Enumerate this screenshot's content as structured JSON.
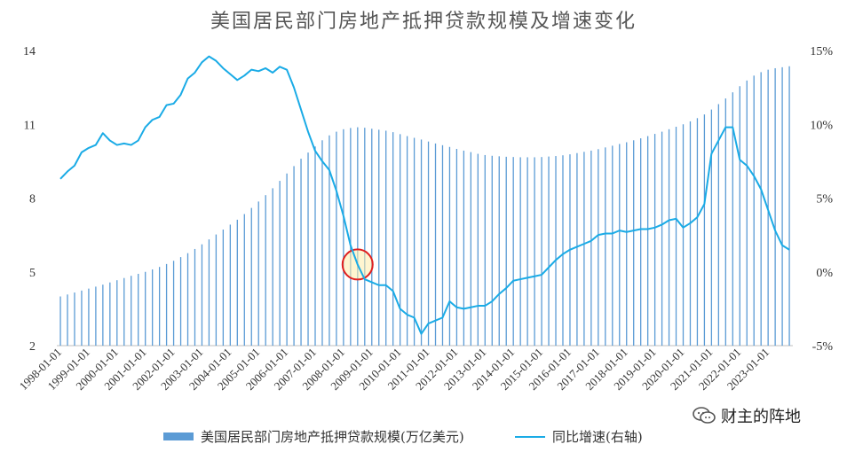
{
  "chart_data": {
    "type": "bar",
    "title": "美国居民部门房地产抵押贷款规模及增速变化",
    "x_tick_labels": [
      "1998-01-01",
      "1999-01-01",
      "2000-01-01",
      "2001-01-01",
      "2002-01-01",
      "2003-01-01",
      "2004-01-01",
      "2005-01-01",
      "2006-01-01",
      "2007-01-01",
      "2008-01-01",
      "2009-01-01",
      "2010-01-01",
      "2011-01-01",
      "2012-01-01",
      "2013-01-01",
      "2014-01-01",
      "2015-01-01",
      "2016-01-01",
      "2017-01-01",
      "2018-01-01",
      "2019-01-01",
      "2020-01-01",
      "2021-01-01",
      "2022-01-01",
      "2023-01-01"
    ],
    "y_left": {
      "ticks": [
        2,
        5,
        8,
        11,
        14
      ],
      "range": [
        2,
        14
      ]
    },
    "y_right": {
      "ticks": [
        "-5%",
        "0%",
        "5%",
        "10%",
        "15%"
      ],
      "range": [
        -5,
        15
      ]
    },
    "series": [
      {
        "name": "美国居民部门房地产抵押贷款规模(万亿美元)",
        "kind": "bar",
        "axis": "left",
        "color": "#5b9bd5",
        "start": "1998Q1",
        "frequency": "quarterly",
        "values": [
          4.0,
          4.08,
          4.16,
          4.24,
          4.32,
          4.4,
          4.48,
          4.57,
          4.66,
          4.75,
          4.84,
          4.92,
          5.0,
          5.1,
          5.2,
          5.32,
          5.45,
          5.6,
          5.76,
          5.93,
          6.12,
          6.32,
          6.52,
          6.72,
          6.92,
          7.12,
          7.35,
          7.6,
          7.86,
          8.12,
          8.4,
          8.7,
          9.0,
          9.3,
          9.6,
          9.85,
          10.1,
          10.35,
          10.55,
          10.7,
          10.8,
          10.85,
          10.88,
          10.86,
          10.82,
          10.78,
          10.74,
          10.68,
          10.6,
          10.52,
          10.45,
          10.38,
          10.3,
          10.22,
          10.15,
          10.08,
          10.0,
          9.93,
          9.87,
          9.8,
          9.75,
          9.72,
          9.7,
          9.68,
          9.67,
          9.66,
          9.66,
          9.66,
          9.67,
          9.69,
          9.71,
          9.74,
          9.78,
          9.83,
          9.88,
          9.93,
          9.99,
          10.06,
          10.13,
          10.2,
          10.27,
          10.35,
          10.43,
          10.52,
          10.61,
          10.7,
          10.8,
          10.9,
          11.0,
          11.12,
          11.25,
          11.4,
          11.6,
          11.82,
          12.05,
          12.3,
          12.55,
          12.78,
          12.98,
          13.12,
          13.22,
          13.28,
          13.32,
          13.36
        ]
      },
      {
        "name": "同比增速(右轴)",
        "kind": "line",
        "axis": "right",
        "color": "#1aabe6",
        "start": "1998Q1",
        "frequency": "quarterly",
        "values": [
          6.3,
          6.8,
          7.2,
          8.1,
          8.4,
          8.6,
          9.4,
          8.9,
          8.6,
          8.7,
          8.6,
          8.9,
          9.8,
          10.3,
          10.5,
          11.3,
          11.4,
          12.0,
          13.1,
          13.5,
          14.2,
          14.6,
          14.3,
          13.8,
          13.4,
          13.0,
          13.3,
          13.7,
          13.6,
          13.8,
          13.5,
          13.9,
          13.7,
          12.5,
          11.0,
          9.5,
          8.2,
          7.5,
          6.9,
          5.5,
          3.8,
          1.8,
          0.5,
          -0.5,
          -0.7,
          -0.9,
          -0.9,
          -1.3,
          -2.5,
          -2.9,
          -3.1,
          -4.2,
          -3.5,
          -3.3,
          -3.1,
          -2.0,
          -2.4,
          -2.5,
          -2.4,
          -2.3,
          -2.3,
          -2.0,
          -1.5,
          -1.1,
          -0.6,
          -0.5,
          -0.4,
          -0.3,
          -0.2,
          0.3,
          0.8,
          1.2,
          1.5,
          1.7,
          1.9,
          2.1,
          2.5,
          2.6,
          2.6,
          2.8,
          2.7,
          2.8,
          2.9,
          2.9,
          3.0,
          3.2,
          3.5,
          3.6,
          3.0,
          3.3,
          3.7,
          4.6,
          8.0,
          8.9,
          9.8,
          9.8,
          7.6,
          7.2,
          6.5,
          5.6,
          4.2,
          2.8,
          1.8,
          1.5
        ]
      }
    ],
    "annotation": {
      "type": "circle",
      "at_index": 42,
      "note": ""
    }
  },
  "legend": {
    "bar_label": "美国居民部门房地产抵押贷款规模(万亿美元)",
    "line_label": "同比增速(右轴)"
  },
  "watermark": {
    "text": "财主的阵地",
    "icon": "wechat-icon"
  }
}
